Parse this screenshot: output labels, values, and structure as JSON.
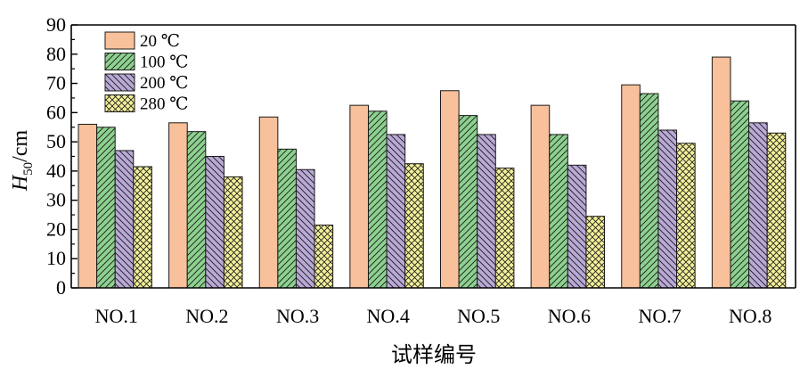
{
  "chart_data": {
    "type": "bar",
    "categories": [
      "NO.1",
      "NO.2",
      "NO.3",
      "NO.4",
      "NO.5",
      "NO.6",
      "NO.7",
      "NO.8"
    ],
    "series": [
      {
        "name": "20 ℃",
        "values": [
          56,
          56.5,
          58.5,
          62.5,
          67.5,
          62.5,
          69.5,
          79
        ],
        "color": "#F8C19B",
        "pattern": "solid"
      },
      {
        "name": "100 ℃",
        "values": [
          55,
          53.5,
          47.5,
          60.5,
          59,
          52.5,
          66.5,
          64
        ],
        "color": "#8DD18F",
        "pattern": "hatch-forward"
      },
      {
        "name": "200 ℃",
        "values": [
          47,
          45,
          40.5,
          52.5,
          52.5,
          42,
          54,
          56.5
        ],
        "color": "#B9A9D6",
        "pattern": "hatch-backward"
      },
      {
        "name": "280 ℃",
        "values": [
          41.5,
          38,
          21.5,
          42.5,
          41,
          24.5,
          49.5,
          53
        ],
        "color": "#F4F09A",
        "pattern": "crosshatch"
      }
    ],
    "title": "",
    "xlabel": "试样编号",
    "ylabel_main": "H",
    "ylabel_sub": "50",
    "ylabel_unit": "/cm",
    "ylim": [
      0,
      90
    ],
    "yticks": [
      "0",
      "10",
      "20",
      "30",
      "40",
      "50",
      "60",
      "70",
      "80",
      "90"
    ],
    "legend_position": "top-left",
    "grid": false
  }
}
